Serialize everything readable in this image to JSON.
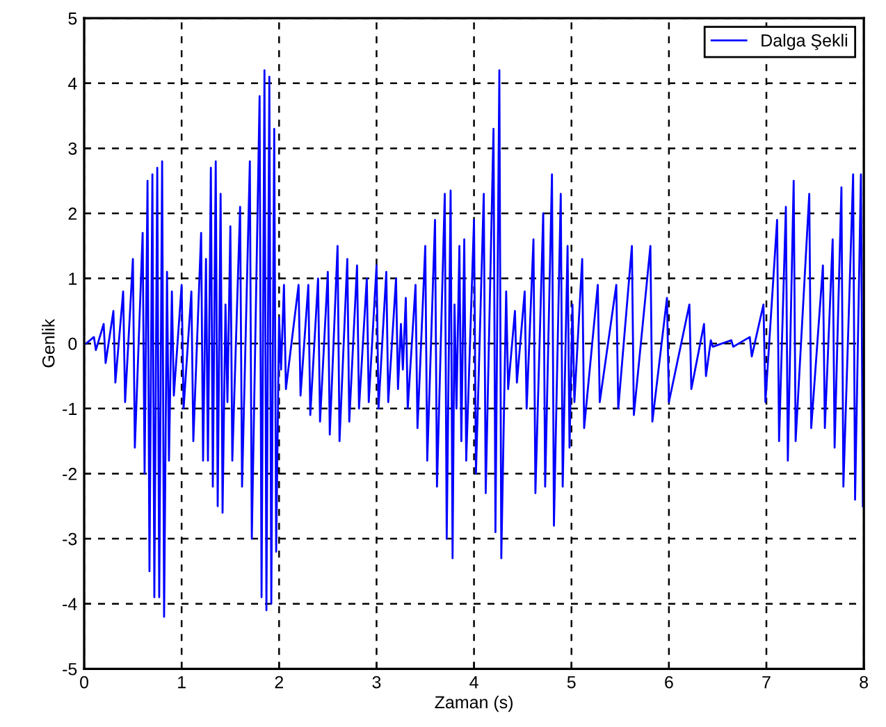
{
  "chart_data": {
    "type": "line",
    "xlabel": "Zaman (s)",
    "ylabel": "Genlik",
    "xlim": [
      0,
      8
    ],
    "xticks": [
      0,
      1,
      2,
      3,
      4,
      5,
      6,
      7,
      8
    ],
    "ylim": [
      -5,
      5
    ],
    "yticks": [
      -5,
      -4,
      -3,
      -2,
      -1,
      0,
      1,
      2,
      3,
      4,
      5
    ],
    "grid": true,
    "legend": "top right",
    "series": [
      {
        "name": "Dalga Şekli",
        "color": "#0000ff",
        "x": [
          0.0,
          0.02,
          0.1,
          0.12,
          0.2,
          0.22,
          0.3,
          0.32,
          0.4,
          0.42,
          0.5,
          0.52,
          0.6,
          0.62,
          0.65,
          0.67,
          0.7,
          0.72,
          0.75,
          0.77,
          0.8,
          0.82,
          0.85,
          0.87,
          0.9,
          0.92,
          1.0,
          1.02,
          1.1,
          1.12,
          1.2,
          1.22,
          1.25,
          1.27,
          1.3,
          1.32,
          1.35,
          1.37,
          1.4,
          1.42,
          1.45,
          1.47,
          1.5,
          1.52,
          1.6,
          1.62,
          1.7,
          1.72,
          1.8,
          1.82,
          1.85,
          1.87,
          1.9,
          1.92,
          1.95,
          1.97,
          2.0,
          2.02,
          2.05,
          2.07,
          2.2,
          2.22,
          2.3,
          2.32,
          2.4,
          2.42,
          2.5,
          2.52,
          2.6,
          2.62,
          2.7,
          2.72,
          2.8,
          2.82,
          2.9,
          2.92,
          3.0,
          3.02,
          3.1,
          3.12,
          3.2,
          3.22,
          3.25,
          3.27,
          3.3,
          3.32,
          3.4,
          3.42,
          3.5,
          3.52,
          3.6,
          3.62,
          3.7,
          3.72,
          3.76,
          3.78,
          3.8,
          3.82,
          3.85,
          3.87,
          3.9,
          3.92,
          4.0,
          4.02,
          4.1,
          4.12,
          4.2,
          4.22,
          4.26,
          4.28,
          4.33,
          4.35,
          4.42,
          4.44,
          4.52,
          4.54,
          4.61,
          4.63,
          4.71,
          4.73,
          4.8,
          4.82,
          4.89,
          4.91,
          4.96,
          4.98,
          5.01,
          5.03,
          5.11,
          5.13,
          5.27,
          5.29,
          5.46,
          5.48,
          5.62,
          5.64,
          5.81,
          5.83,
          5.98,
          6.0,
          6.21,
          6.23,
          6.36,
          6.38,
          6.43,
          6.45,
          6.64,
          6.66,
          6.83,
          6.85,
          6.97,
          6.99,
          7.11,
          7.13,
          7.2,
          7.22,
          7.28,
          7.3,
          7.44,
          7.46,
          7.58,
          7.6,
          7.68,
          7.7,
          7.77,
          7.79,
          7.89,
          7.91,
          7.97,
          7.99
        ],
        "values": [
          0,
          0,
          0.1,
          -0.1,
          0.3,
          -0.3,
          0.5,
          -0.6,
          0.8,
          -0.9,
          1.3,
          -1.6,
          1.7,
          -2.0,
          2.5,
          -3.5,
          2.6,
          -3.9,
          2.7,
          -3.9,
          2.8,
          -4.2,
          1.1,
          -1.8,
          0.8,
          -0.8,
          0.9,
          -1.0,
          0.8,
          -1.5,
          1.7,
          -1.8,
          1.3,
          -1.8,
          2.7,
          -2.2,
          2.8,
          -2.5,
          2.3,
          -2.6,
          0.6,
          -0.9,
          1.8,
          -1.8,
          2.1,
          -2.2,
          2.8,
          -3.0,
          3.8,
          -3.9,
          4.2,
          -4.1,
          4.1,
          -4.0,
          3.3,
          -3.2,
          0.4,
          -0.4,
          0.9,
          -0.7,
          0.9,
          -0.8,
          0.9,
          -1.1,
          1.0,
          -1.2,
          1.1,
          -1.4,
          1.5,
          -1.5,
          1.3,
          -1.2,
          1.2,
          -1.0,
          1.0,
          -0.9,
          1.2,
          -1.0,
          1.1,
          -0.9,
          1.0,
          -0.7,
          0.3,
          -0.4,
          0.7,
          -1.0,
          0.9,
          -1.3,
          1.5,
          -1.8,
          1.9,
          -2.2,
          2.3,
          -3.0,
          2.35,
          -3.3,
          0.6,
          -1.0,
          1.5,
          -1.5,
          1.6,
          -1.8,
          1.9,
          -2.0,
          2.3,
          -2.3,
          3.3,
          -2.9,
          4.2,
          -3.3,
          0.8,
          -0.7,
          0.5,
          -0.6,
          0.8,
          -1.0,
          1.6,
          -2.3,
          2.0,
          -2.2,
          2.6,
          -2.8,
          2.3,
          -2.2,
          1.5,
          -1.6,
          0.6,
          -0.9,
          1.3,
          -1.3,
          0.9,
          -0.9,
          0.9,
          -1.0,
          1.5,
          -1.1,
          1.5,
          -1.2,
          0.7,
          -0.9,
          0.6,
          -0.7,
          0.3,
          -0.5,
          0.05,
          -0.05,
          0.05,
          -0.05,
          0.1,
          -0.2,
          0.6,
          -0.9,
          1.9,
          -1.5,
          2.1,
          -1.8,
          2.5,
          -1.5,
          2.3,
          -1.3,
          1.2,
          -1.3,
          1.6,
          -1.6,
          2.4,
          -2.2,
          2.6,
          -2.4,
          2.6,
          -2.5
        ]
      }
    ]
  }
}
